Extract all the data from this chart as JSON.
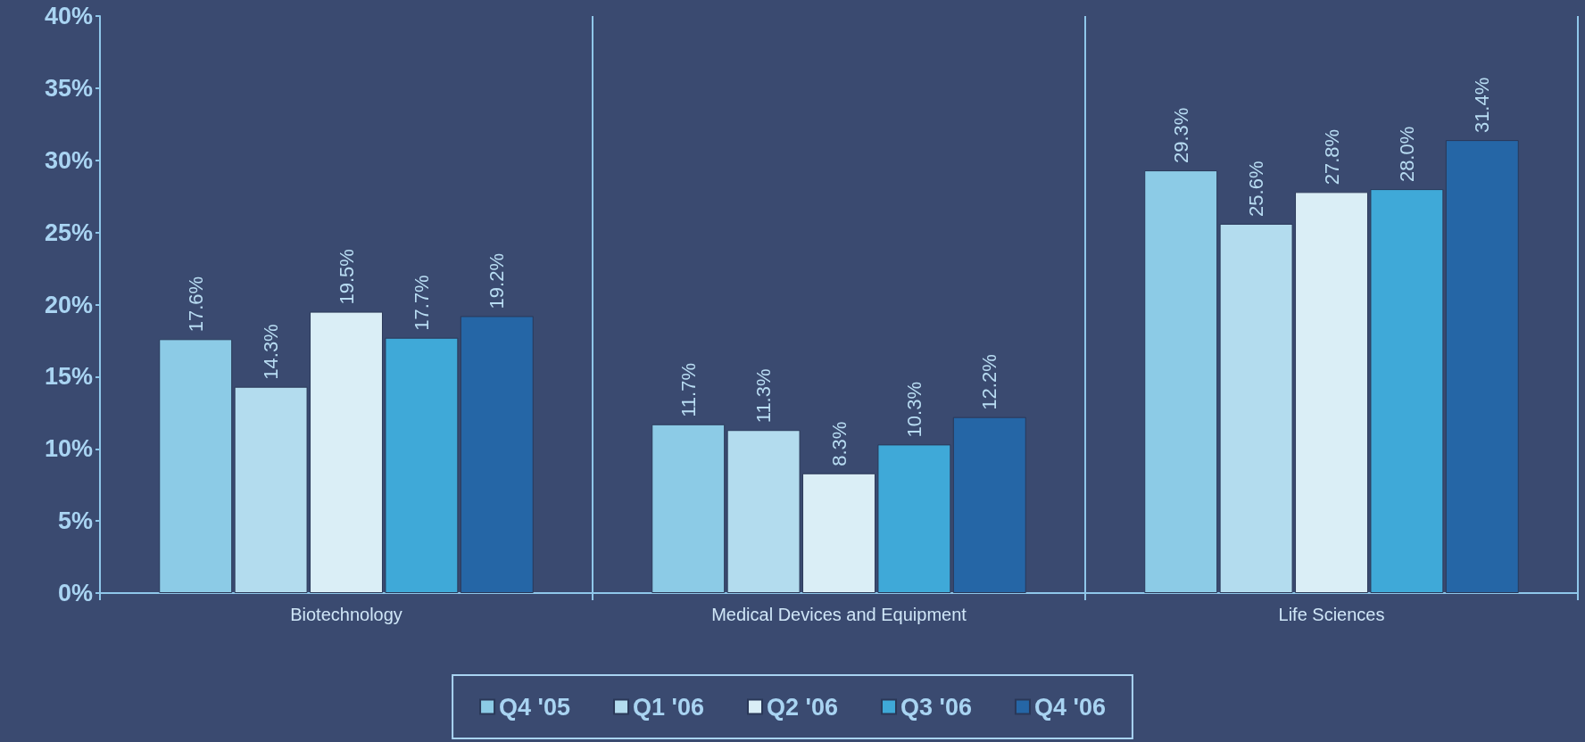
{
  "chart_data": {
    "type": "bar",
    "categories": [
      "Biotechnology",
      "Medical Devices and Equipment",
      "Life Sciences"
    ],
    "series": [
      {
        "name": "Q4 '05",
        "color": "#8ccbe6",
        "values": [
          17.6,
          11.7,
          29.3
        ],
        "value_labels": [
          "17.6%",
          "11.7%",
          "29.3%"
        ]
      },
      {
        "name": "Q1 '06",
        "color": "#b3dcee",
        "values": [
          14.3,
          11.3,
          25.6
        ],
        "value_labels": [
          "14.3%",
          "11.3%",
          "25.6%"
        ]
      },
      {
        "name": "Q2 '06",
        "color": "#daeef6",
        "values": [
          19.5,
          8.3,
          27.8
        ],
        "value_labels": [
          "19.5%",
          "8.3%",
          "27.8%"
        ]
      },
      {
        "name": "Q3 '06",
        "color": "#3fa9d8",
        "values": [
          17.7,
          10.3,
          28.0
        ],
        "value_labels": [
          "17.7%",
          "10.3%",
          "28.0%"
        ]
      },
      {
        "name": "Q4 '06",
        "color": "#2566a6",
        "values": [
          19.2,
          12.2,
          31.4
        ],
        "value_labels": [
          "19.2%",
          "12.2%",
          "31.4%"
        ]
      }
    ],
    "ylim": [
      0,
      40
    ],
    "yticks": [
      {
        "value": 0,
        "label": "0%"
      },
      {
        "value": 5,
        "label": "5%"
      },
      {
        "value": 10,
        "label": "10%"
      },
      {
        "value": 15,
        "label": "15%"
      },
      {
        "value": 20,
        "label": "20%"
      },
      {
        "value": 25,
        "label": "25%"
      },
      {
        "value": 30,
        "label": "30%"
      },
      {
        "value": 35,
        "label": "35%"
      },
      {
        "value": 40,
        "label": "40%"
      }
    ],
    "grid": "x",
    "legend": "bottom"
  }
}
